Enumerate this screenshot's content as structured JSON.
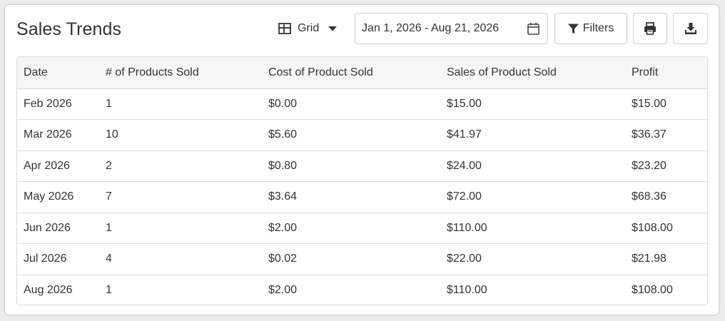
{
  "header": {
    "title": "Sales Trends",
    "view_label": "Grid",
    "date_range": "Jan 1, 2026 - Aug 21, 2026",
    "filters_label": "Filters"
  },
  "icons": {
    "view": "grid-icon",
    "view_dropdown": "caret-down-icon",
    "date": "calendar-icon",
    "filters": "filter-icon",
    "print": "print-icon",
    "download": "download-icon"
  },
  "table": {
    "columns": [
      "Date",
      "# of Products Sold",
      "Cost of Product Sold",
      "Sales of Product Sold",
      "Profit"
    ],
    "rows": [
      [
        "Feb 2026",
        "1",
        "$0.00",
        "$15.00",
        "$15.00"
      ],
      [
        "Mar 2026",
        "10",
        "$5.60",
        "$41.97",
        "$36.37"
      ],
      [
        "Apr 2026",
        "2",
        "$0.80",
        "$24.00",
        "$23.20"
      ],
      [
        "May 2026",
        "7",
        "$3.64",
        "$72.00",
        "$68.36"
      ],
      [
        "Jun 2026",
        "1",
        "$2.00",
        "$110.00",
        "$108.00"
      ],
      [
        "Jul 2026",
        "4",
        "$0.02",
        "$22.00",
        "$21.98"
      ],
      [
        "Aug 2026",
        "1",
        "$2.00",
        "$110.00",
        "$108.00"
      ]
    ]
  },
  "colors": {
    "background": "#ececec",
    "card": "#ffffff",
    "border": "#cfcfcf",
    "header_row": "#f6f6f6",
    "text": "#333333"
  }
}
